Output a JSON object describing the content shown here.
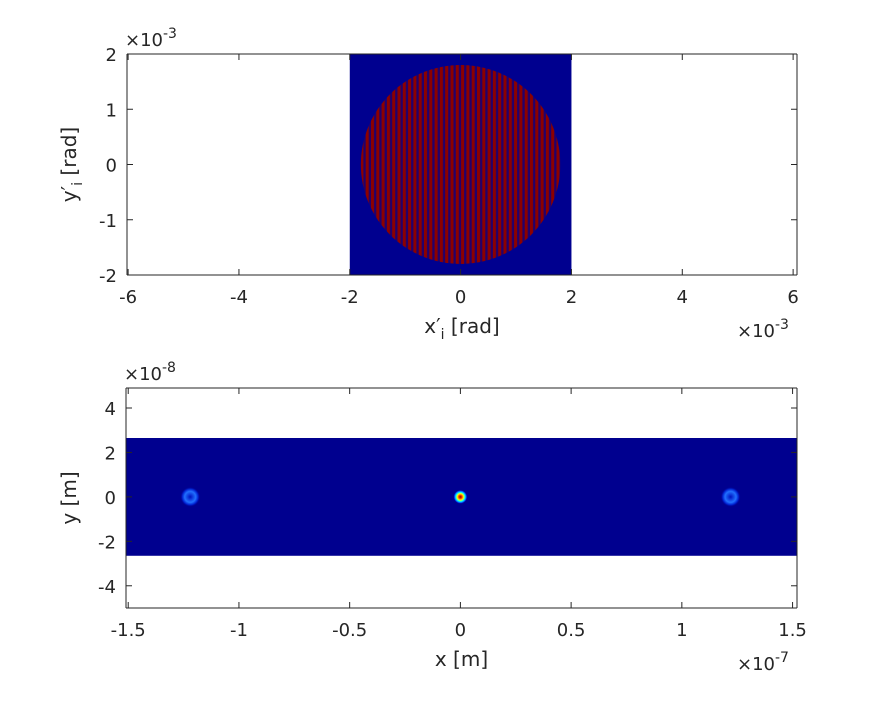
{
  "chart_data": [
    {
      "type": "image",
      "x_label": {
        "base": "x′",
        "sub": "i",
        "unit": " [rad]"
      },
      "y_label": {
        "base": "y′",
        "sub": "i",
        "unit": " [rad]"
      },
      "x_exponent": {
        "base": "×10",
        "power": "-3"
      },
      "y_exponent": {
        "base": "×10",
        "power": "-3"
      },
      "xlim": [
        -6.02,
        6.07
      ],
      "ylim": [
        -2,
        2
      ],
      "xticks": [
        -6,
        -4,
        -2,
        0,
        2,
        4,
        6
      ],
      "yticks": [
        -2,
        -1,
        0,
        1,
        2
      ],
      "image": {
        "x": [
          -2,
          2
        ],
        "y": [
          -2,
          2
        ],
        "color": "#00008f"
      },
      "circle": {
        "center": [
          0,
          0
        ],
        "radius": 1.8,
        "color": "#8c0000"
      }
    },
    {
      "type": "spots",
      "x_label": {
        "base": "x",
        "sub": "",
        "unit": " [m]"
      },
      "y_label": {
        "base": "y",
        "sub": "",
        "unit": " [m]"
      },
      "x_exponent": {
        "base": "×10",
        "power": "-7"
      },
      "y_exponent": {
        "base": "×10",
        "power": "-8"
      },
      "xlim": [
        -1.51,
        1.52
      ],
      "ylim": [
        -5,
        4.9
      ],
      "xticks": [
        -1.5,
        -1,
        -0.5,
        0,
        0.5,
        1,
        1.5
      ],
      "yticks": [
        -4,
        -2,
        0,
        2,
        4
      ],
      "image": {
        "x": [
          -1.51,
          1.52
        ],
        "y": [
          -2.65,
          2.65
        ],
        "color": "#00008f"
      },
      "spots": {
        "x": [
          -1.22,
          0,
          1.22
        ],
        "y": [
          0,
          0,
          0
        ]
      }
    }
  ]
}
